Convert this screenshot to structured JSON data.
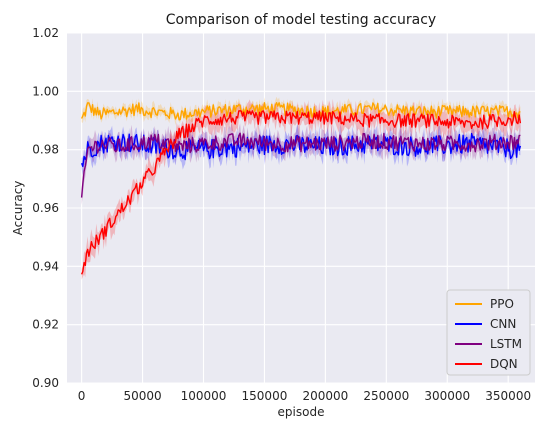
{
  "chart_data": {
    "type": "line",
    "title": "Comparison of model testing accuracy",
    "xlabel": "episode",
    "ylabel": "Accuracy",
    "xlim": [
      -12000,
      372000
    ],
    "ylim": [
      0.9,
      1.02
    ],
    "xticks": [
      0,
      50000,
      100000,
      150000,
      200000,
      250000,
      300000,
      350000
    ],
    "xtick_labels": [
      "0",
      "50000",
      "100000",
      "150000",
      "200000",
      "250000",
      "300000",
      "350000"
    ],
    "yticks": [
      0.9,
      0.92,
      0.94,
      0.96,
      0.98,
      1.0,
      1.02
    ],
    "ytick_labels": [
      "0.90",
      "0.92",
      "0.94",
      "0.96",
      "0.98",
      "1.00",
      "1.02"
    ],
    "grid": true,
    "legend_position": "lower-right",
    "series": [
      {
        "name": "PPO",
        "color": "#ffa500",
        "x": [
          0,
          5000,
          15000,
          30000,
          45000,
          60000,
          80000,
          100000,
          130000,
          160000,
          200000,
          240000,
          280000,
          320000,
          360000
        ],
        "y": [
          0.99,
          0.995,
          0.992,
          0.993,
          0.994,
          0.993,
          0.992,
          0.993,
          0.994,
          0.994,
          0.993,
          0.994,
          0.993,
          0.993,
          0.993
        ]
      },
      {
        "name": "CNN",
        "color": "#0000ff",
        "x": [
          0,
          5000,
          15000,
          30000,
          45000,
          60000,
          80000,
          100000,
          130000,
          160000,
          200000,
          240000,
          280000,
          320000,
          360000
        ],
        "y": [
          0.975,
          0.98,
          0.982,
          0.983,
          0.982,
          0.981,
          0.98,
          0.98,
          0.981,
          0.982,
          0.981,
          0.982,
          0.981,
          0.982,
          0.98
        ]
      },
      {
        "name": "LSTM",
        "color": "#800080",
        "x": [
          0,
          5000,
          15000,
          30000,
          45000,
          60000,
          80000,
          100000,
          130000,
          160000,
          200000,
          240000,
          280000,
          320000,
          360000
        ],
        "y": [
          0.963,
          0.98,
          0.982,
          0.981,
          0.982,
          0.983,
          0.981,
          0.982,
          0.983,
          0.982,
          0.982,
          0.983,
          0.982,
          0.982,
          0.983
        ]
      },
      {
        "name": "DQN",
        "color": "#ff0000",
        "x": [
          0,
          5000,
          15000,
          30000,
          45000,
          60000,
          70000,
          80000,
          100000,
          130000,
          160000,
          200000,
          240000,
          280000,
          320000,
          360000
        ],
        "y": [
          0.938,
          0.945,
          0.95,
          0.958,
          0.966,
          0.974,
          0.98,
          0.985,
          0.99,
          0.991,
          0.991,
          0.991,
          0.99,
          0.99,
          0.989,
          0.991
        ]
      }
    ]
  }
}
